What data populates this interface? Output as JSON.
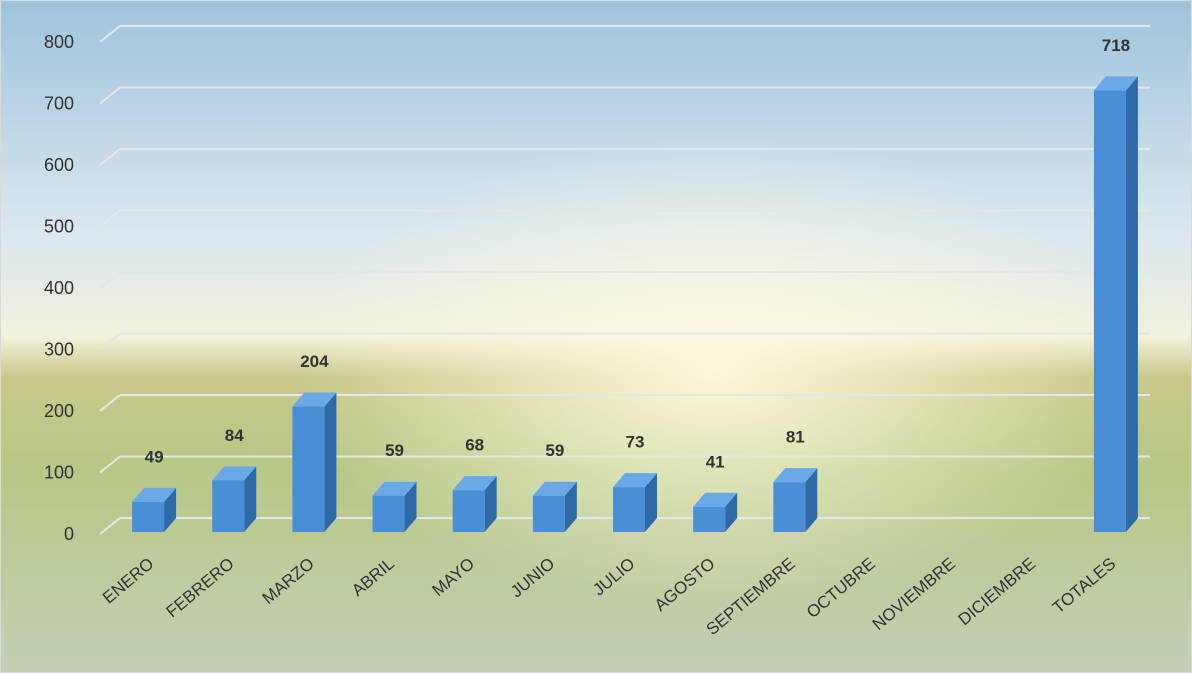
{
  "chart_data": {
    "type": "bar3d",
    "categories": [
      "ENERO",
      "FEBRERO",
      "MARZO",
      "ABRIL",
      "MAYO",
      "JUNIO",
      "JULIO",
      "AGOSTO",
      "SEPTIEMBRE",
      "OCTUBRE",
      "NOVIEMBRE",
      "DICIEMBRE",
      "TOTALES"
    ],
    "values": [
      49,
      84,
      204,
      59,
      68,
      59,
      73,
      41,
      81,
      null,
      null,
      null,
      718
    ],
    "color": "#4a8fd6",
    "ylim": [
      0,
      800
    ],
    "yticks": [
      0,
      100,
      200,
      300,
      400,
      500,
      600,
      700,
      800
    ],
    "grid": true
  }
}
